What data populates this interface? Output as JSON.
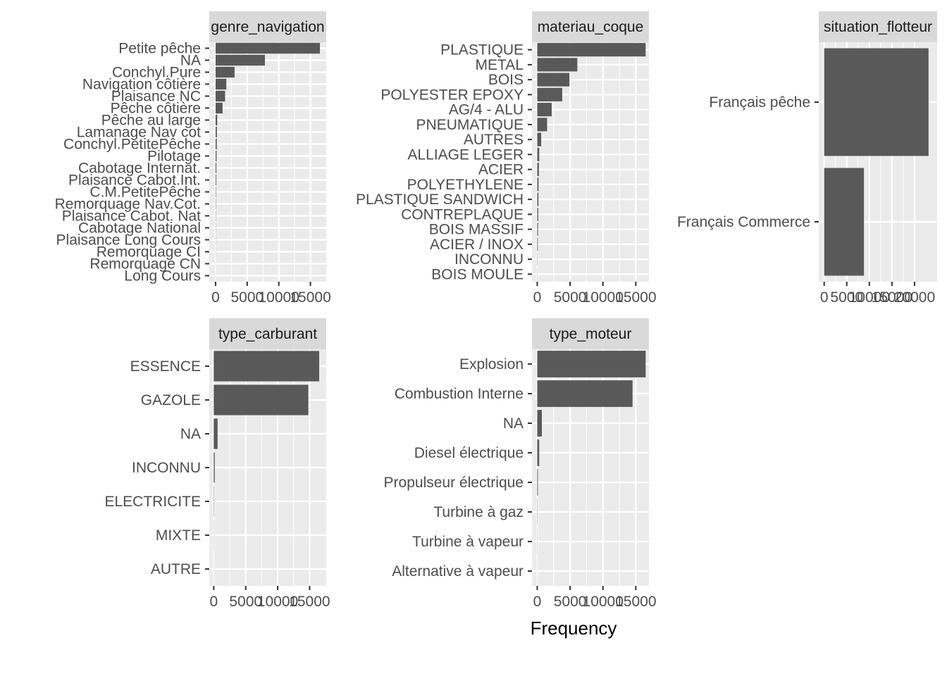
{
  "chart_data": {
    "type": "bar",
    "orientation": "horizontal",
    "xlabel": "Frequency",
    "colors": {
      "bar": "#595959",
      "panel": "#ebebeb",
      "grid": "#ffffff",
      "strip": "#d9d9d9",
      "text": "#4d4d4d"
    },
    "grid": true,
    "facets": [
      {
        "title": "genre_navigation",
        "xlim": [
          -1000,
          17500
        ],
        "ticks": [
          0,
          5000,
          10000,
          15000
        ],
        "tick_labels": [
          "0",
          "5000",
          "10000",
          "15000"
        ],
        "categories": [
          "Petite pêche",
          "NA",
          "Conchyl.Pure",
          "Navigation côtière",
          "Plaisance NC",
          "Pêche côtière",
          "Pêche au large",
          "Lamanage Nav cot",
          "Conchyl.PetitePêche",
          "Pilotage",
          "Cabotage Internat.",
          "Plaisance Cabot.Int.",
          "C.M.PetitePêche",
          "Remorquage Nav.Cot.",
          "Plaisance Cabot. Nat",
          "Cabotage National",
          "Plaisance Long Cours",
          "Remorquage CI",
          "Remorquage CN",
          "Long Cours"
        ],
        "values": [
          16500,
          7800,
          3000,
          1700,
          1500,
          1100,
          250,
          200,
          180,
          150,
          120,
          100,
          60,
          50,
          40,
          30,
          25,
          20,
          15,
          10
        ]
      },
      {
        "title": "materiau_coque",
        "xlim": [
          -800,
          17000
        ],
        "ticks": [
          0,
          5000,
          10000,
          15000
        ],
        "tick_labels": [
          "0",
          "5000",
          "10000",
          "15000"
        ],
        "categories": [
          "PLASTIQUE",
          "METAL",
          "BOIS",
          "POLYESTER EPOXY",
          "AG/4 - ALU",
          "PNEUMATIQUE",
          "AUTRES",
          "ALLIAGE LEGER",
          "ACIER",
          "POLYETHYLENE",
          "PLASTIQUE SANDWICH",
          "CONTREPLAQUE",
          "BOIS MASSIF",
          "ACIER / INOX",
          "INCONNU",
          "BOIS MOULE"
        ],
        "values": [
          16500,
          6100,
          4900,
          3800,
          2200,
          1500,
          600,
          300,
          250,
          200,
          180,
          150,
          120,
          90,
          30,
          20
        ]
      },
      {
        "title": "situation_flotteur",
        "xlim": [
          -1200,
          25000
        ],
        "ticks": [
          0,
          5000,
          10000,
          15000,
          20000
        ],
        "tick_labels": [
          "0",
          "5000",
          "10000",
          "15000",
          "20000"
        ],
        "categories": [
          "Français pêche",
          "Français Commerce"
        ],
        "values": [
          23100,
          8800
        ]
      },
      {
        "title": "type_carburant",
        "xlim": [
          -700,
          17600
        ],
        "ticks": [
          0,
          5000,
          10000,
          15000
        ],
        "tick_labels": [
          "0",
          "5000",
          "10000",
          "15000"
        ],
        "categories": [
          "ESSENCE",
          "GAZOLE",
          "NA",
          "INCONNU",
          "ELECTRICITE",
          "MIXTE",
          "AUTRE"
        ],
        "values": [
          16500,
          14800,
          600,
          150,
          40,
          20,
          10
        ]
      },
      {
        "title": "type_moteur",
        "xlim": [
          -800,
          17000
        ],
        "ticks": [
          0,
          5000,
          10000,
          15000
        ],
        "tick_labels": [
          "0",
          "5000",
          "10000",
          "15000"
        ],
        "categories": [
          "Explosion",
          "Combustion Interne",
          "NA",
          "Diesel électrique",
          "Propulseur électrique",
          "Turbine à gaz",
          "Turbine à vapeur",
          "Alternative à vapeur"
        ],
        "values": [
          16500,
          14500,
          700,
          300,
          100,
          30,
          20,
          10
        ]
      }
    ]
  }
}
